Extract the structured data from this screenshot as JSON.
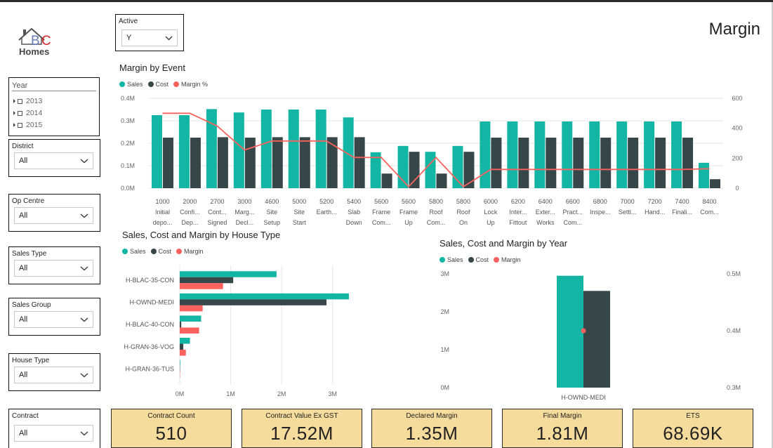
{
  "page": {
    "title": "Margin"
  },
  "logo": {
    "text_bc": "BC",
    "text_homes": "Homes"
  },
  "colors": {
    "sales": "#13b5a4",
    "cost": "#374649",
    "margin": "#fd625e"
  },
  "filters": {
    "active": {
      "label": "Active",
      "value": "Y"
    },
    "year": {
      "label": "Year",
      "options": [
        "2013",
        "2014",
        "2015"
      ]
    },
    "district": {
      "label": "District",
      "value": "All"
    },
    "op_centre": {
      "label": "Op Centre",
      "value": "All"
    },
    "sales_type": {
      "label": "Sales Type",
      "value": "All"
    },
    "sales_group": {
      "label": "Sales Group",
      "value": "All"
    },
    "house_type": {
      "label": "House Type",
      "value": "All"
    },
    "contract": {
      "label": "Contract",
      "value": "All"
    }
  },
  "legend_event": {
    "sales": "Sales",
    "cost": "Cost",
    "margin": "Margin %"
  },
  "legend_house": {
    "sales": "Sales",
    "cost": "Cost",
    "margin": "Margin"
  },
  "legend_year": {
    "sales": "Sales",
    "cost": "Cost",
    "margin": "Margin"
  },
  "chart_data": [
    {
      "type": "bar",
      "title": "Margin by Event",
      "categories": [
        [
          "1000",
          "Initial",
          "depo..."
        ],
        [
          "2000",
          "Confi...",
          "Dep..."
        ],
        [
          "2700",
          "Cont...",
          "Signed"
        ],
        [
          "3000",
          "Marg...",
          "Decl..."
        ],
        [
          "4600",
          "Site",
          "Setup"
        ],
        [
          "5000",
          "Site",
          "Start"
        ],
        [
          "5200",
          "Earth...",
          ""
        ],
        [
          "5400",
          "Slab",
          "Down"
        ],
        [
          "5600",
          "Frame",
          "Com..."
        ],
        [
          "5600",
          "Frame",
          "Up"
        ],
        [
          "5800",
          "Roof",
          "Com..."
        ],
        [
          "5800",
          "Roof",
          "On"
        ],
        [
          "6000",
          "Lock",
          "Up"
        ],
        [
          "6200",
          "Inter...",
          "Fittout"
        ],
        [
          "6400",
          "Exter...",
          "Works"
        ],
        [
          "6600",
          "Pract...",
          "Com..."
        ],
        [
          "6800",
          "Inspe...",
          ""
        ],
        [
          "7000",
          "Settl...",
          ""
        ],
        [
          "7200",
          "Hand...",
          ""
        ],
        [
          "7400",
          "Finali...",
          ""
        ],
        [
          "8400",
          "Com...",
          ""
        ]
      ],
      "series": [
        {
          "name": "Sales",
          "values": [
            325000,
            325000,
            352000,
            337000,
            350000,
            350000,
            350000,
            315000,
            160000,
            188000,
            162000,
            188000,
            297000,
            297000,
            297000,
            297000,
            297000,
            297000,
            297000,
            297000,
            113000
          ]
        },
        {
          "name": "Cost",
          "values": [
            225000,
            225000,
            227000,
            225000,
            227000,
            227000,
            227000,
            227000,
            65000,
            162000,
            65000,
            162000,
            225000,
            225000,
            225000,
            225000,
            225000,
            225000,
            225000,
            225000,
            40000
          ]
        },
        {
          "name": "Margin %",
          "axis": "right",
          "values": [
            500,
            500,
            415,
            255,
            315,
            315,
            315,
            205,
            205,
            10,
            205,
            10,
            125,
            125,
            125,
            125,
            125,
            125,
            125,
            125,
            130
          ]
        }
      ],
      "y_ticks": [
        "0.0M",
        "0.1M",
        "0.2M",
        "0.3M",
        "0.4M"
      ],
      "y2_ticks": [
        "0",
        "200",
        "400",
        "600"
      ],
      "ylim": [
        0,
        400000
      ],
      "y2lim": [
        0,
        600
      ],
      "legend": "top-left"
    },
    {
      "type": "bar",
      "orientation": "horizontal",
      "title": "Sales, Cost and Margin by House Type",
      "categories": [
        "H-BLAC-35-CON",
        "H-OWND-MEDI",
        "H-BLAC-40-CON",
        "H-GRAN-36-VOG",
        "H-GRAN-36-TUS"
      ],
      "series": [
        {
          "name": "Sales",
          "values": [
            1900000,
            3320000,
            420000,
            200000,
            10000
          ]
        },
        {
          "name": "Cost",
          "values": [
            1050000,
            2880000,
            30000,
            70000,
            5000
          ]
        },
        {
          "name": "Margin",
          "values": [
            850000,
            450000,
            380000,
            120000,
            5000
          ]
        }
      ],
      "x_ticks": [
        "0M",
        "1M",
        "2M",
        "3M"
      ],
      "xlim": [
        0,
        3500000
      ],
      "legend": "top-left"
    },
    {
      "type": "bar",
      "title": "Sales, Cost and Margin by Year",
      "categories": [
        "H-OWND-MEDI"
      ],
      "series": [
        {
          "name": "Sales",
          "values": [
            2950000
          ]
        },
        {
          "name": "Cost",
          "values": [
            2550000
          ]
        },
        {
          "name": "Margin",
          "axis": "right",
          "values": [
            400000
          ]
        }
      ],
      "y_ticks": [
        "0M",
        "1M",
        "2M",
        "3M"
      ],
      "y2_ticks": [
        "0.3M",
        "0.4M",
        "0.5M"
      ],
      "ylim": [
        0,
        3000000
      ],
      "y2lim": [
        300000,
        500000
      ],
      "legend": "top-left"
    }
  ],
  "cards": [
    {
      "title": "Contract Count",
      "value": "510"
    },
    {
      "title": "Contract Value Ex GST",
      "value": "17.52M"
    },
    {
      "title": "Declared Margin",
      "value": "1.35M"
    },
    {
      "title": "Final Margin",
      "value": "1.81M"
    },
    {
      "title": "ETS",
      "value": "68.69K"
    }
  ]
}
